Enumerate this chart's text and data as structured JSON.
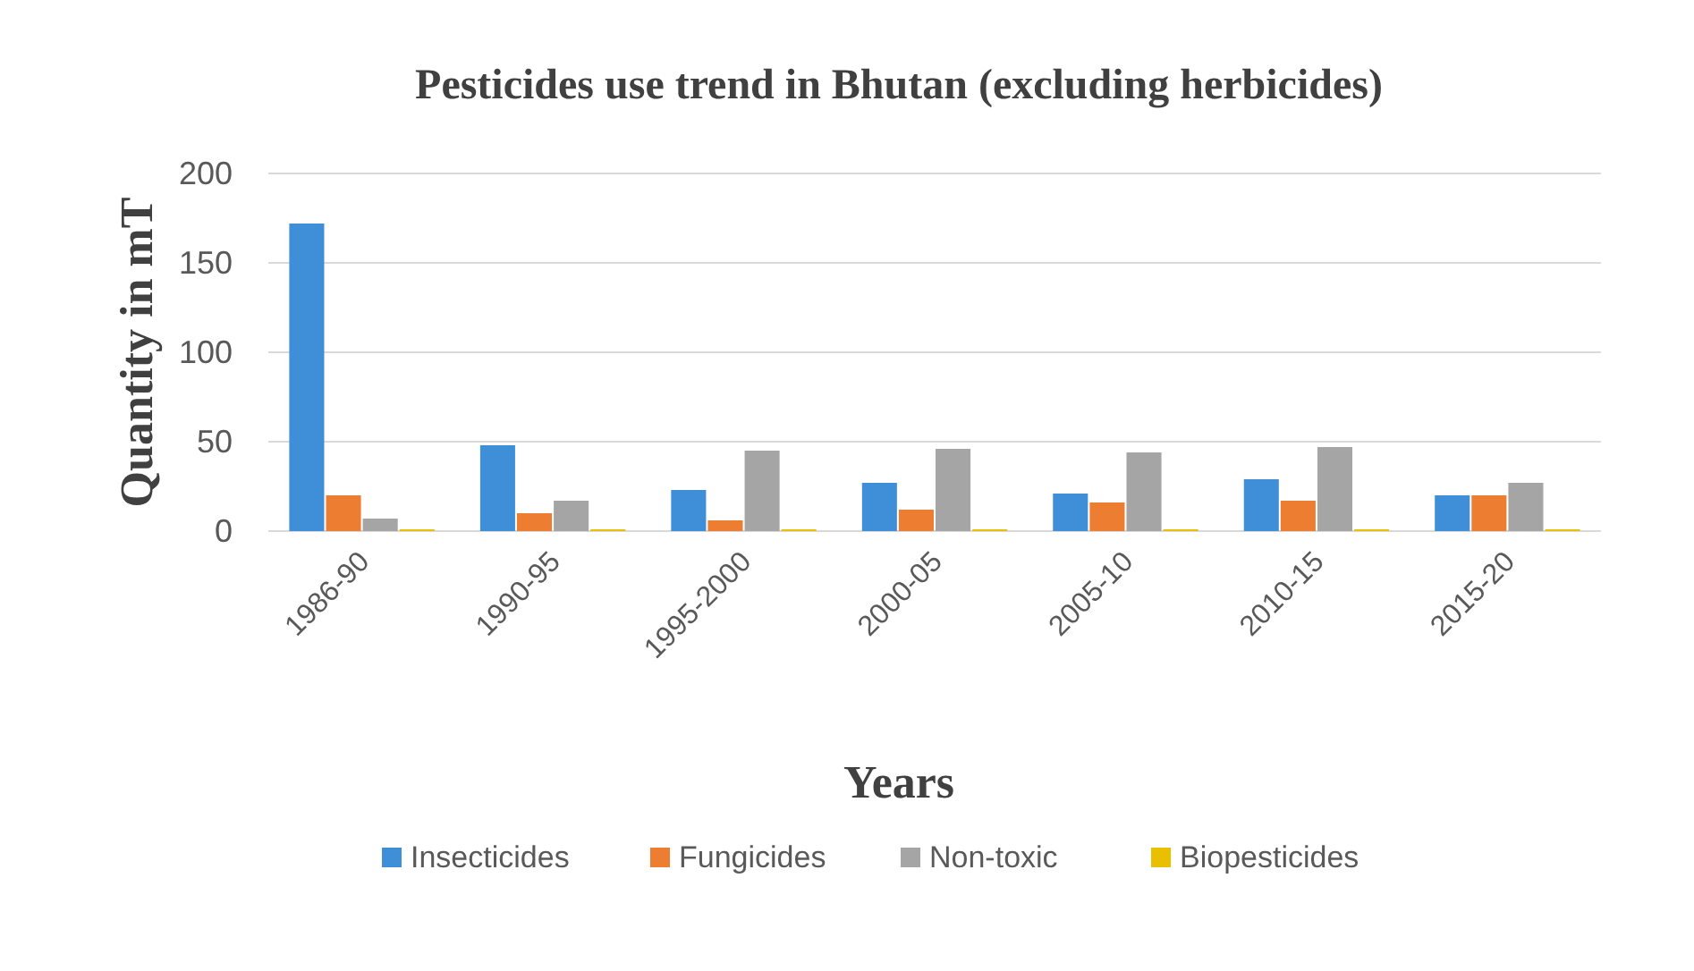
{
  "chart_data": {
    "type": "bar",
    "title": "Pesticides use trend in Bhutan (excluding herbicides)",
    "xlabel": "Years",
    "ylabel": "Quantity in mT",
    "categories": [
      "1986-90",
      "1990-95",
      "1995-2000",
      "2000-05",
      "2005-10",
      "2010-15",
      "2015-20"
    ],
    "series": [
      {
        "name": "Insecticides",
        "color": "#3f8fd8",
        "values": [
          172,
          48,
          23,
          27,
          21,
          29,
          20
        ]
      },
      {
        "name": "Fungicides",
        "color": "#ed7d31",
        "values": [
          20,
          10,
          6,
          12,
          16,
          17,
          20
        ]
      },
      {
        "name": "Non-toxic",
        "color": "#a5a5a5",
        "values": [
          7,
          17,
          45,
          46,
          44,
          47,
          27
        ]
      },
      {
        "name": "Biopesticides",
        "color": "#e8c000",
        "values": [
          1,
          1,
          1,
          1,
          1,
          1,
          1
        ]
      }
    ],
    "ylim": [
      0,
      200
    ],
    "yticks": [
      0,
      50,
      100,
      150,
      200
    ],
    "grid": "y",
    "legend": "bottom"
  }
}
